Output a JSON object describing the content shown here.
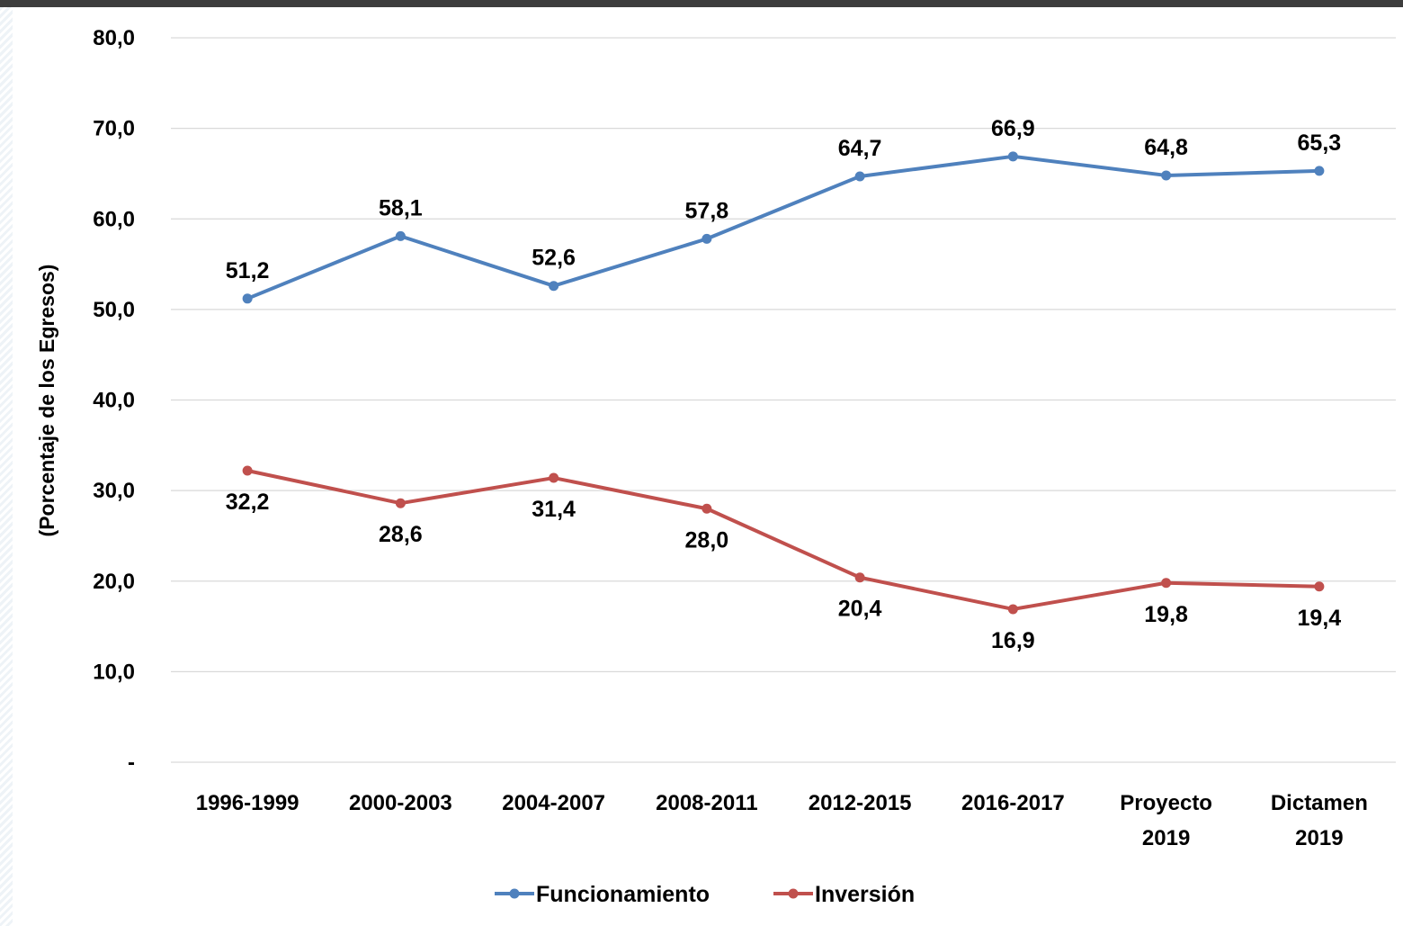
{
  "chart_data": {
    "type": "line",
    "title": "",
    "xlabel": "",
    "ylabel": "(Porcentaje de los Egresos)",
    "ylim": [
      0,
      80
    ],
    "grid": true,
    "legend_position": "bottom",
    "y_ticks": [
      "-",
      "10,0",
      "20,0",
      "30,0",
      "40,0",
      "50,0",
      "60,0",
      "70,0",
      "80,0"
    ],
    "categories": [
      [
        "1996-1999"
      ],
      [
        "2000-2003"
      ],
      [
        "2004-2007"
      ],
      [
        "2008-2011"
      ],
      [
        "2012-2015"
      ],
      [
        "2016-2017"
      ],
      [
        "Proyecto",
        "2019"
      ],
      [
        "Dictamen",
        "2019"
      ]
    ],
    "series": [
      {
        "name": "Funcionamiento",
        "color": "#4f81bd",
        "values": [
          51.2,
          58.1,
          52.6,
          57.8,
          64.7,
          66.9,
          64.8,
          65.3
        ],
        "labels": [
          "51,2",
          "58,1",
          "52,6",
          "57,8",
          "64,7",
          "66,9",
          "64,8",
          "65,3"
        ],
        "label_position": "above"
      },
      {
        "name": "Inversión",
        "color": "#c0504d",
        "values": [
          32.2,
          28.6,
          31.4,
          28.0,
          20.4,
          16.9,
          19.8,
          19.4
        ],
        "labels": [
          "32,2",
          "28,6",
          "31,4",
          "28,0",
          "20,4",
          "16,9",
          "19,8",
          "19,4"
        ],
        "label_position": "below"
      }
    ]
  }
}
